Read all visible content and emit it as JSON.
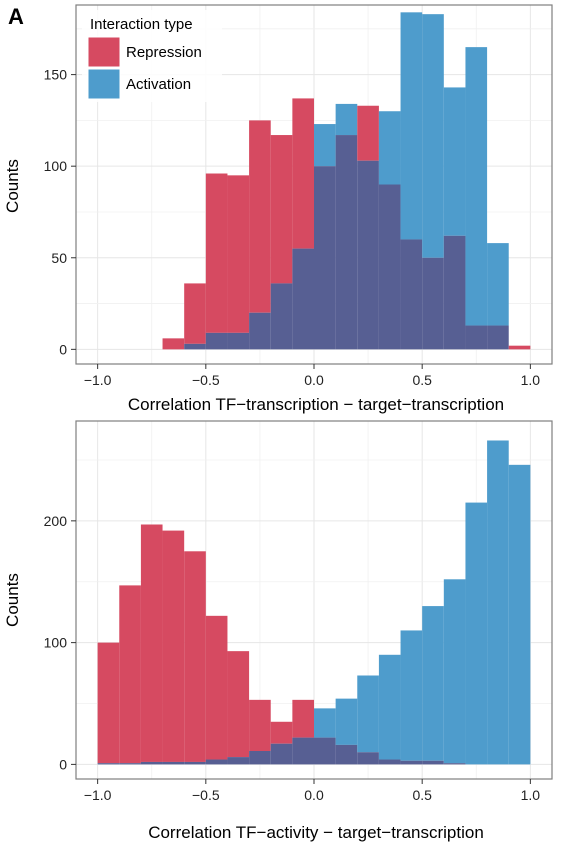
{
  "panel_label": "A",
  "colors": {
    "repression": "#D64A61",
    "activation": "#4E9CCC",
    "overlap": "#575F93",
    "grid": "#E6E6E6",
    "panel_border": "#7F7F7F"
  },
  "legend": {
    "title": "Interaction type",
    "items": [
      {
        "label": "Repression",
        "color": "#D64A61"
      },
      {
        "label": "Activation",
        "color": "#4E9CCC"
      }
    ]
  },
  "chart_data": [
    {
      "type": "bar",
      "subtype": "overlapping histogram",
      "xlabel": "Correlation TF−transcription − target−transcription",
      "ylabel": "Counts",
      "xlim": [
        -1.1,
        1.1
      ],
      "ylim": [
        -8,
        188
      ],
      "x_ticks": [
        -1.0,
        -0.5,
        0.0,
        0.5,
        1.0
      ],
      "x_tick_labels": [
        "−1.0",
        "−0.5",
        "0.0",
        "0.5",
        "1.0"
      ],
      "y_ticks": [
        0,
        50,
        100,
        150
      ],
      "y_tick_labels": [
        "0",
        "50",
        "100",
        "150"
      ],
      "bin_edges": [
        -0.7,
        -0.6,
        -0.5,
        -0.4,
        -0.3,
        -0.2,
        -0.1,
        0.0,
        0.1,
        0.2,
        0.3,
        0.4,
        0.5,
        0.6,
        0.7,
        0.8,
        0.9,
        1.0
      ],
      "series": [
        {
          "name": "Repression",
          "values": [
            6,
            36,
            96,
            95,
            125,
            117,
            137,
            100,
            117,
            133,
            90,
            60,
            50,
            62,
            13,
            13,
            2
          ]
        },
        {
          "name": "Activation",
          "values": [
            0,
            3,
            9,
            9,
            20,
            36,
            55,
            123,
            134,
            103,
            130,
            184,
            183,
            143,
            165,
            58,
            0
          ]
        }
      ],
      "grid": true,
      "legend": "top-left"
    },
    {
      "type": "bar",
      "subtype": "overlapping histogram",
      "xlabel": "Correlation TF−activity − target−transcription",
      "ylabel": "Counts",
      "xlim": [
        -1.1,
        1.1
      ],
      "ylim": [
        -12,
        282
      ],
      "x_ticks": [
        -1.0,
        -0.5,
        0.0,
        0.5,
        1.0
      ],
      "x_tick_labels": [
        "−1.0",
        "−0.5",
        "0.0",
        "0.5",
        "1.0"
      ],
      "y_ticks": [
        0,
        100,
        200
      ],
      "y_tick_labels": [
        "0",
        "100",
        "200"
      ],
      "bin_edges": [
        -1.0,
        -0.9,
        -0.8,
        -0.7,
        -0.6,
        -0.5,
        -0.4,
        -0.3,
        -0.2,
        -0.1,
        0.0,
        0.1,
        0.2,
        0.3,
        0.4,
        0.5,
        0.6,
        0.7,
        0.8,
        0.9,
        1.0
      ],
      "series": [
        {
          "name": "Repression",
          "values": [
            100,
            147,
            197,
            192,
            175,
            122,
            93,
            53,
            35,
            53,
            22,
            16,
            10,
            4,
            3,
            3,
            1,
            0,
            0,
            0
          ]
        },
        {
          "name": "Activation",
          "values": [
            1,
            1,
            2,
            2,
            2,
            4,
            6,
            11,
            17,
            22,
            46,
            54,
            73,
            90,
            110,
            130,
            152,
            215,
            266,
            246
          ]
        }
      ],
      "grid": true,
      "legend": "none"
    }
  ]
}
